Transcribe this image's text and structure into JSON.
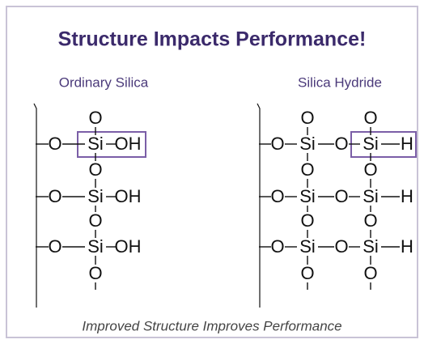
{
  "diagram": {
    "title": "Structure Impacts Performance!",
    "left": {
      "label": "Ordinary Silica",
      "atoms": [
        "O",
        "O",
        "Si",
        "OH",
        "O",
        "O",
        "Si",
        "OH",
        "O",
        "O",
        "Si",
        "OH",
        "O"
      ]
    },
    "right": {
      "label": "Silica Hydride",
      "atoms": [
        "O",
        "O",
        "O",
        "Si",
        "O",
        "Si",
        "H",
        "O",
        "O",
        "O",
        "Si",
        "O",
        "Si",
        "H",
        "O",
        "O",
        "O",
        "Si",
        "O",
        "Si",
        "H",
        "O",
        "O"
      ]
    },
    "caption": "Improved Structure Improves Performance"
  }
}
